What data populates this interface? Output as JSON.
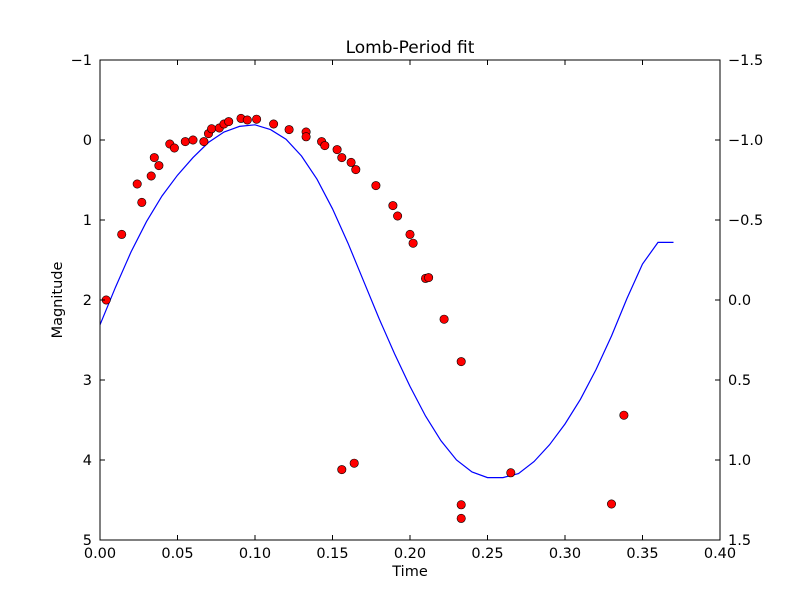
{
  "chart_data": {
    "type": "scatter",
    "title": "Lomb-Period fit",
    "xlabel": "Time",
    "ylabel": "Magnitude",
    "xlim": [
      0.0,
      0.4
    ],
    "ylim_left": [
      -1,
      5
    ],
    "ylim_right": [
      -1.5,
      1.5
    ],
    "y_inverted": true,
    "grid": false,
    "x_ticks": [
      "0.00",
      "0.05",
      "0.10",
      "0.15",
      "0.20",
      "0.25",
      "0.30",
      "0.35",
      "0.40"
    ],
    "y_ticks_left": [
      "−1",
      "0",
      "1",
      "2",
      "3",
      "4",
      "5"
    ],
    "y_ticks_right": [
      "−1.5",
      "−1.0",
      "−0.5",
      "0.0",
      "0.5",
      "1.0",
      "1.5"
    ],
    "colors": {
      "points": "#ff0000",
      "fit": "#0000ff"
    },
    "series": [
      {
        "kind": "points",
        "axis": "left",
        "x": [
          0.004,
          0.014,
          0.024,
          0.027,
          0.033,
          0.035,
          0.038,
          0.045,
          0.048,
          0.055,
          0.06,
          0.067,
          0.07,
          0.072,
          0.077,
          0.08,
          0.083,
          0.091,
          0.095,
          0.101,
          0.112,
          0.122,
          0.133,
          0.133,
          0.143,
          0.145,
          0.153,
          0.156,
          0.162,
          0.165,
          0.178,
          0.189,
          0.192,
          0.2,
          0.202,
          0.21,
          0.212,
          0.222,
          0.233,
          0.233,
          0.233,
          0.156,
          0.164,
          0.265,
          0.33,
          0.338
        ],
        "y": [
          2.0,
          1.18,
          0.55,
          0.78,
          0.45,
          0.22,
          0.32,
          0.05,
          0.1,
          0.02,
          0.0,
          0.02,
          -0.08,
          -0.14,
          -0.15,
          -0.2,
          -0.23,
          -0.27,
          -0.25,
          -0.26,
          -0.2,
          -0.13,
          -0.1,
          -0.04,
          0.02,
          0.07,
          0.12,
          0.22,
          0.28,
          0.37,
          0.57,
          0.82,
          0.95,
          1.18,
          1.29,
          1.73,
          1.72,
          2.24,
          2.77,
          4.56,
          4.73,
          4.12,
          4.04,
          4.16,
          4.55,
          3.44
        ]
      },
      {
        "kind": "fit-line",
        "axis": "left",
        "x": [
          0.0,
          0.01,
          0.02,
          0.03,
          0.04,
          0.05,
          0.06,
          0.07,
          0.08,
          0.09,
          0.1,
          0.11,
          0.12,
          0.13,
          0.14,
          0.15,
          0.16,
          0.17,
          0.18,
          0.19,
          0.2,
          0.21,
          0.22,
          0.23,
          0.24,
          0.25,
          0.26,
          0.27,
          0.28,
          0.29,
          0.3,
          0.31,
          0.32,
          0.33,
          0.34,
          0.35,
          0.36,
          0.37
        ],
        "y": [
          2.31,
          1.84,
          1.4,
          1.02,
          0.7,
          0.44,
          0.22,
          0.03,
          -0.1,
          -0.17,
          -0.19,
          -0.13,
          -0.01,
          0.2,
          0.49,
          0.86,
          1.29,
          1.76,
          2.23,
          2.67,
          3.08,
          3.45,
          3.76,
          4.0,
          4.15,
          4.22,
          4.22,
          4.17,
          4.02,
          3.81,
          3.55,
          3.24,
          2.87,
          2.45,
          1.98,
          1.55,
          1.28,
          1.28
        ]
      }
    ]
  }
}
